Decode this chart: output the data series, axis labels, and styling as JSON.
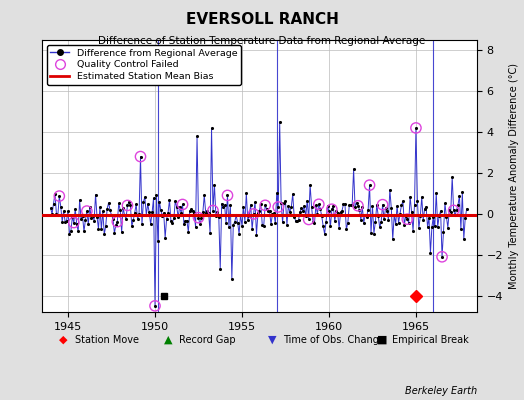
{
  "title": "EVERSOLL RANCH",
  "subtitle": "Difference of Station Temperature Data from Regional Average",
  "ylabel": "Monthly Temperature Anomaly Difference (°C)",
  "xlim": [
    1943.5,
    1968.5
  ],
  "ylim": [
    -4.8,
    8.5
  ],
  "yticks": [
    -4,
    -2,
    0,
    2,
    4,
    6,
    8
  ],
  "xticks": [
    1945,
    1950,
    1955,
    1960,
    1965
  ],
  "background_color": "#e0e0e0",
  "plot_bg_color": "#ffffff",
  "mean_bias": -0.08,
  "obs_change_times": [
    1950.17,
    1957.0,
    1966.0
  ],
  "station_move_time": 1965.0,
  "station_move_value": -4.0,
  "empirical_break_time": 1950.5,
  "empirical_break_value": -4.0,
  "line_color": "#3333cc",
  "marker_color": "#000000",
  "qc_color": "#dd44dd",
  "bias_color": "#dd0000",
  "grid_color": "#bbbbbb",
  "seed": 42
}
